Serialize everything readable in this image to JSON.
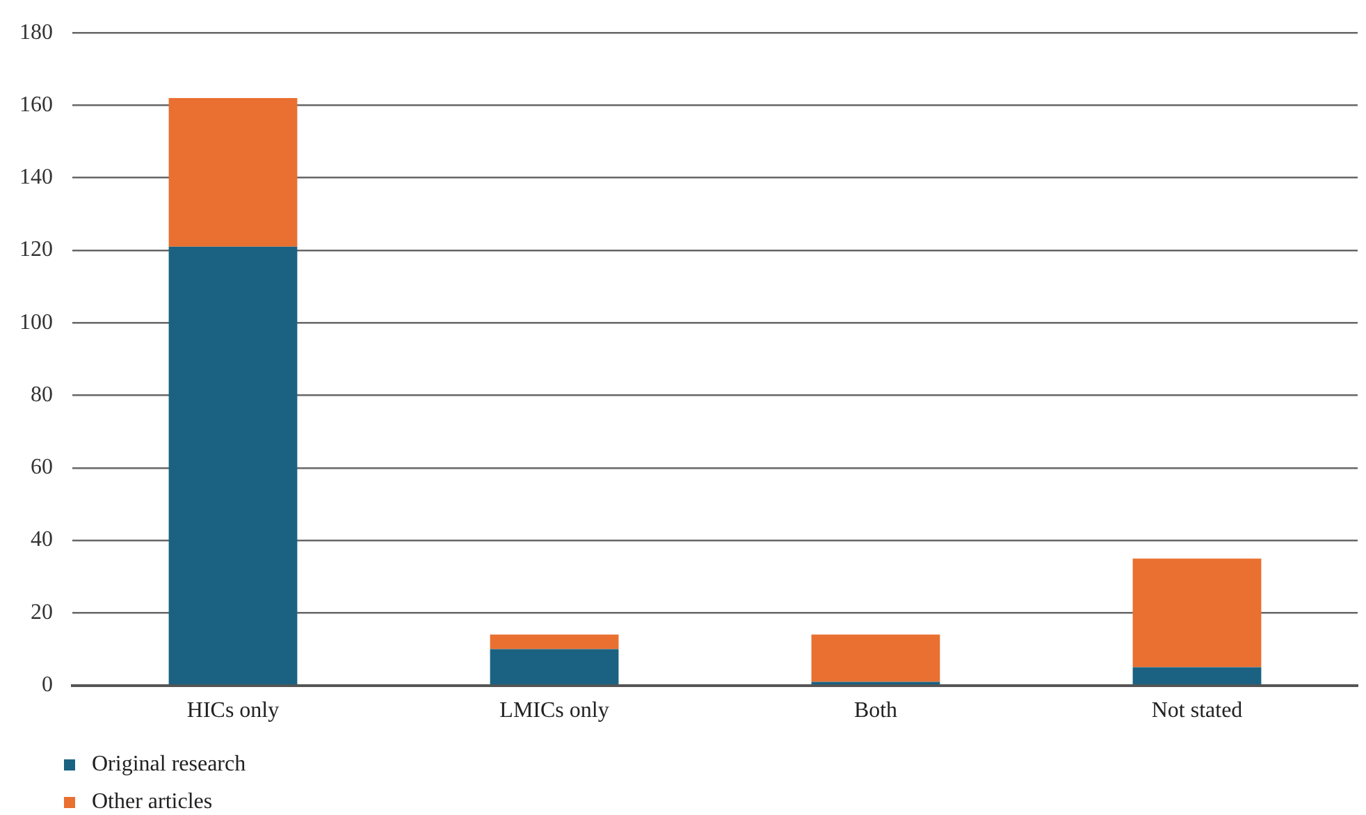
{
  "chart_data": {
    "type": "bar",
    "stacked": true,
    "categories": [
      "HICs only",
      "LMICs only",
      "Both",
      "Not stated"
    ],
    "series": [
      {
        "name": "Original research",
        "color": "#1b6282",
        "values": [
          121,
          10,
          1,
          5
        ]
      },
      {
        "name": "Other articles",
        "color": "#e97030",
        "values": [
          41,
          4,
          13,
          30
        ]
      }
    ],
    "ylim": [
      0,
      180
    ],
    "yticks": [
      0,
      20,
      40,
      60,
      80,
      100,
      120,
      140,
      160,
      180
    ],
    "grid": "y",
    "legend": "bottom left"
  }
}
